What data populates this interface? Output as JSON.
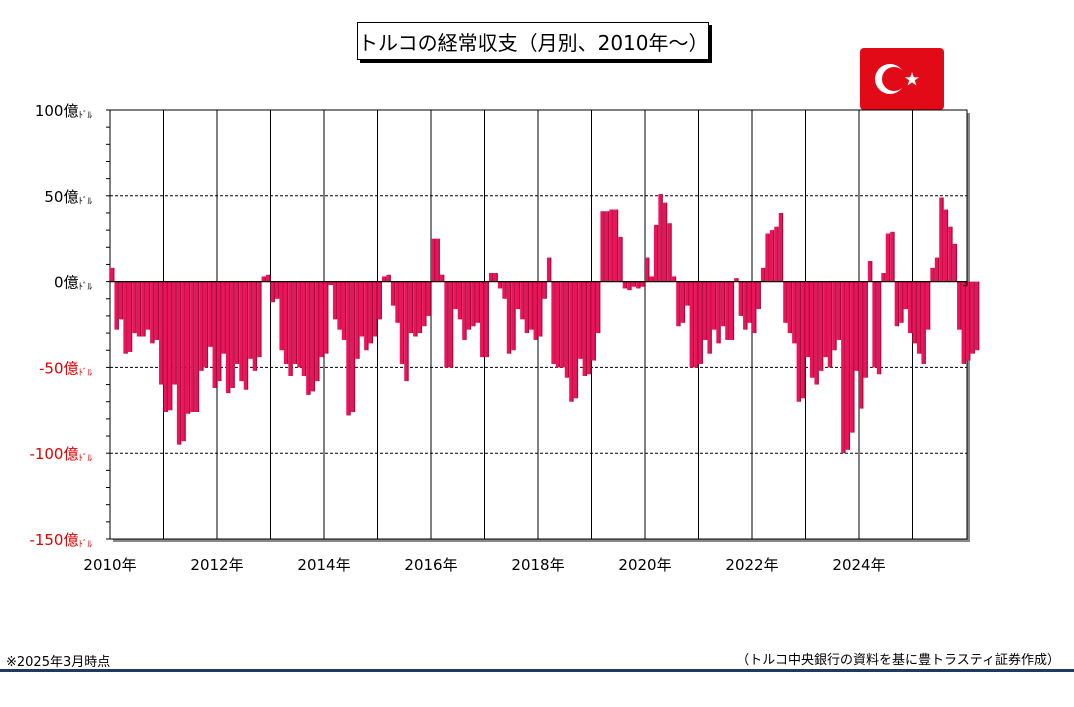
{
  "title": "トルコの経常収支（月別、2010年～）",
  "note_left": "※2025年3月時点",
  "note_right": "（トルコ中央銀行の資料を基に豊トラスティ証券作成）",
  "colors": {
    "bar": "#e8155a",
    "bar_side": "#a80a3c",
    "negative_label": "#e00000",
    "positive_label": "#000000",
    "flag": "#e30a17",
    "rule": "#1f3864"
  },
  "icons": {
    "flag": "turkey-flag-icon"
  },
  "chart_data": {
    "type": "bar",
    "title": "トルコの経常収支（月別、2010年～）",
    "xlabel": "",
    "ylabel": "",
    "unit": "億ﾄﾞﾙ",
    "ylim": [
      -150,
      100
    ],
    "yticks": [
      {
        "value": 100,
        "label": "100億ﾄﾞﾙ"
      },
      {
        "value": 50,
        "label": "50億ﾄﾞﾙ"
      },
      {
        "value": 0,
        "label": "0億ﾄﾞﾙ"
      },
      {
        "value": -50,
        "label": "-50億ﾄﾞﾙ"
      },
      {
        "value": -100,
        "label": "-100億ﾄﾞﾙ"
      },
      {
        "value": -150,
        "label": "-150億ﾄﾞﾙ"
      }
    ],
    "xticks": [
      "2010年",
      "2012年",
      "2014年",
      "2016年",
      "2018年",
      "2020年",
      "2022年",
      "2024年"
    ],
    "grid": "dashed at ±50, ±100; vertical lines each year",
    "start": "2010-01",
    "values": [
      8,
      -28,
      -22,
      -42,
      -41,
      -30,
      -32,
      -32,
      -28,
      -36,
      -34,
      -60,
      -76,
      -75,
      -60,
      -95,
      -93,
      -77,
      -76,
      -76,
      -52,
      -50,
      -38,
      -62,
      -58,
      -42,
      -65,
      -62,
      -48,
      -58,
      -63,
      -45,
      -52,
      -44,
      3,
      4,
      -12,
      -10,
      -40,
      -48,
      -55,
      -48,
      -50,
      -55,
      -66,
      -64,
      -58,
      -44,
      -42,
      -2,
      -22,
      -28,
      -34,
      -78,
      -76,
      -45,
      -32,
      -40,
      -36,
      -32,
      -22,
      3,
      4,
      -14,
      -24,
      -48,
      -58,
      -30,
      -32,
      -30,
      -26,
      -20,
      25,
      25,
      4,
      -50,
      -50,
      -16,
      -22,
      -34,
      -28,
      -26,
      -24,
      -44,
      -44,
      5,
      5,
      -4,
      -10,
      -42,
      -40,
      -16,
      -22,
      -30,
      -28,
      -34,
      -32,
      -10,
      14,
      -48,
      -50,
      -50,
      -56,
      -70,
      -68,
      -45,
      -55,
      -54,
      -46,
      -30,
      41,
      41,
      42,
      42,
      26,
      -4,
      -5,
      -3,
      -4,
      -3,
      14,
      3,
      33,
      51,
      46,
      34,
      3,
      -26,
      -24,
      -14,
      -50,
      -50,
      -48,
      -34,
      -42,
      -28,
      -36,
      -26,
      -34,
      -34,
      2,
      -20,
      -28,
      -24,
      -30,
      -16,
      8,
      28,
      30,
      32,
      40,
      -24,
      -30,
      -36,
      -70,
      -68,
      -44,
      -56,
      -60,
      -52,
      -44,
      -50,
      -40,
      -34,
      -100,
      -98,
      -88,
      -52,
      -74,
      -56,
      12,
      -50,
      -54,
      5,
      28,
      29,
      -26,
      -24,
      -16,
      -30,
      -36,
      -42,
      -48,
      -28,
      8,
      14,
      49,
      42,
      32,
      22,
      -28,
      -48,
      -46,
      -42,
      -40
    ]
  }
}
